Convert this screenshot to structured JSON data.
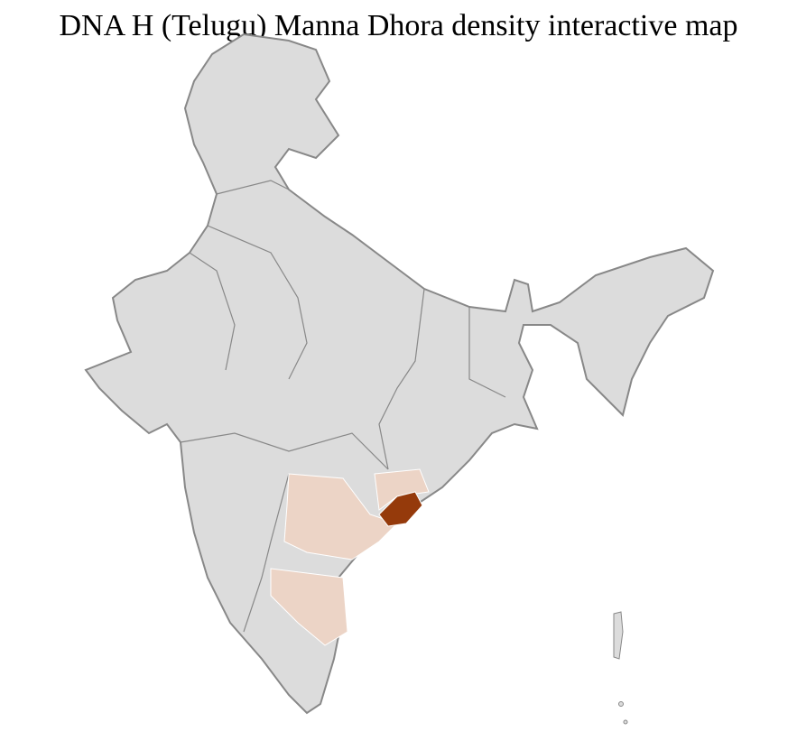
{
  "title": "DNA H (Telugu) Manna Dhora density interactive map",
  "colors": {
    "base": "#dcdcdc",
    "low_density": "#ecd4c6",
    "high_density": "#953a0b",
    "border": "#888888",
    "district_border": "#ffffff"
  }
}
